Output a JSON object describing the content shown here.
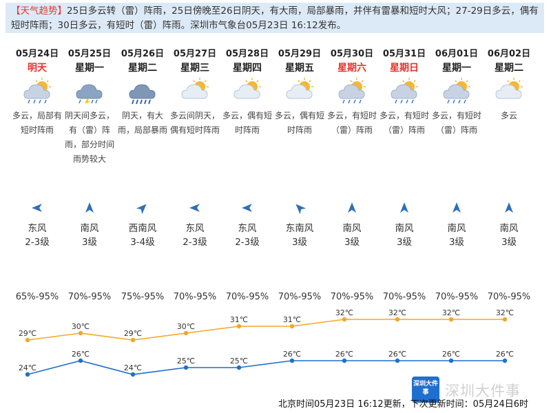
{
  "trend": {
    "tag": "【天气趋势】",
    "text": "25日多云转（雷）阵雨，25日傍晚至26日阴天，有大雨，局部暴雨，并伴有雷暴和短时大风；27-29日多云，偶有短时阵雨；30日多云，有短时（雷）阵雨。深圳市气象台05月23日 16:12发布。"
  },
  "days": [
    {
      "date": "05月24日",
      "week": "明天",
      "week_red": true,
      "icon": "cloudy-sun-rain-icon",
      "desc": "多云，局部有短时阵雨",
      "wind_dir": "东风",
      "wind_level": "2-3级",
      "arrow": "arrow-west-icon",
      "humidity": "65%-95%",
      "hi": 29,
      "lo": 24
    },
    {
      "date": "05月25日",
      "week": "星期一",
      "week_red": false,
      "icon": "thunder-rain-icon",
      "desc": "阴天间多云，有（雷）阵雨，部分时间雨势较大",
      "wind_dir": "南风",
      "wind_level": "3级",
      "arrow": "arrow-north-icon",
      "humidity": "70%-95%",
      "hi": 30,
      "lo": 26
    },
    {
      "date": "05月26日",
      "week": "星期二",
      "week_red": false,
      "icon": "heavy-rain-icon",
      "desc": "阴天，有大雨，局部暴雨",
      "wind_dir": "西南风",
      "wind_level": "3-4级",
      "arrow": "arrow-northeast-icon",
      "humidity": "75%-95%",
      "hi": 29,
      "lo": 24
    },
    {
      "date": "05月27日",
      "week": "星期三",
      "week_red": false,
      "icon": "partly-cloudy-icon",
      "desc": "多云间阴天，偶有短时阵雨",
      "wind_dir": "东风",
      "wind_level": "2-3级",
      "arrow": "arrow-west-icon",
      "humidity": "70%-95%",
      "hi": 30,
      "lo": 25
    },
    {
      "date": "05月28日",
      "week": "星期四",
      "week_red": false,
      "icon": "partly-cloudy-icon",
      "desc": "多云，偶有短时阵雨",
      "wind_dir": "东风",
      "wind_level": "2-3级",
      "arrow": "arrow-west-icon",
      "humidity": "70%-95%",
      "hi": 31,
      "lo": 25
    },
    {
      "date": "05月29日",
      "week": "星期五",
      "week_red": false,
      "icon": "partly-cloudy-icon",
      "desc": "多云，偶有短时阵雨",
      "wind_dir": "东南风",
      "wind_level": "3级",
      "arrow": "arrow-northwest-icon",
      "humidity": "70%-95%",
      "hi": 31,
      "lo": 26
    },
    {
      "date": "05月30日",
      "week": "星期六",
      "week_red": true,
      "icon": "cloudy-sun-rain-icon",
      "desc": "多云，有短时（雷）阵雨",
      "wind_dir": "南风",
      "wind_level": "3级",
      "arrow": "arrow-north-icon",
      "humidity": "70%-95%",
      "hi": 32,
      "lo": 26
    },
    {
      "date": "05月31日",
      "week": "星期日",
      "week_red": true,
      "icon": "cloudy-sun-rain-icon",
      "desc": "多云，有短时（雷）阵雨",
      "wind_dir": "南风",
      "wind_level": "3级",
      "arrow": "arrow-north-icon",
      "humidity": "70%-95%",
      "hi": 32,
      "lo": 26
    },
    {
      "date": "06月01日",
      "week": "星期一",
      "week_red": false,
      "icon": "cloudy-sun-rain-icon",
      "desc": "多云，有短时（雷）阵雨",
      "wind_dir": "南风",
      "wind_level": "3级",
      "arrow": "arrow-north-icon",
      "humidity": "70%-95%",
      "hi": 32,
      "lo": 26
    },
    {
      "date": "06月02日",
      "week": "星期二",
      "week_red": false,
      "icon": "partly-cloudy-icon",
      "desc": "多云",
      "wind_dir": "南风",
      "wind_level": "3级",
      "arrow": "arrow-north-icon",
      "humidity": "70%-95%",
      "hi": 32,
      "lo": 26
    }
  ],
  "temp_unit": "℃",
  "colors": {
    "high_line": "#f5a623",
    "low_line": "#1c6fcf",
    "red_text": "#e8332b",
    "trend_bg": "#dce9f7"
  },
  "footer": "北京时间05月23日 16:12更新，下次更新时间：05月24日6时",
  "watermark": {
    "badge": "深圳大件事",
    "text": "深圳大件事"
  }
}
